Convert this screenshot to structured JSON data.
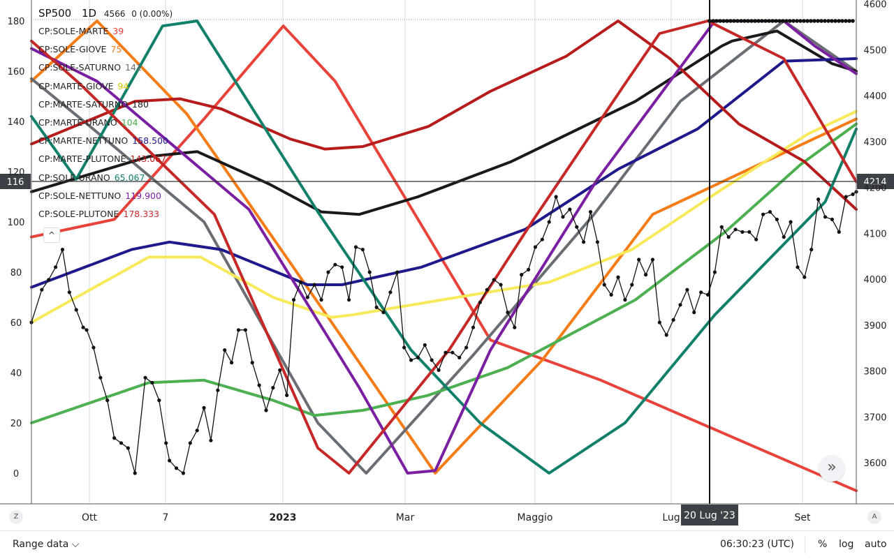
{
  "header": {
    "symbol": "SP500",
    "interval": "1D",
    "price": "4566",
    "change": "0 (0.00%)"
  },
  "legend": [
    {
      "name": "CP:SOLE-MARTE",
      "value": "39",
      "color": "#e8433a"
    },
    {
      "name": "CP:SOLE-GIOVE",
      "value": "75",
      "color": "#f57c17"
    },
    {
      "name": "CP:SOLE-SATURNO",
      "value": "141",
      "color": "#6a6d73"
    },
    {
      "name": "CP:MARTE-GIOVE",
      "value": "94",
      "color": "#f7e95a"
    },
    {
      "name": "CP:MARTE-SATURNO",
      "value": "180",
      "color": "#1a1a1a"
    },
    {
      "name": "CP:MARTE-URANO",
      "value": "104",
      "color": "#4caf50"
    },
    {
      "name": "CP:MARTE-NETTUNO",
      "value": "158.500",
      "color": "#1f1a8c"
    },
    {
      "name": "CP:MARTE-PLUTONE",
      "value": "143.067",
      "color": "#b71c1c"
    },
    {
      "name": "CP:SOLE-URANO",
      "value": "65.067",
      "color": "#11806a"
    },
    {
      "name": "CP:SOLE-NETTUNO",
      "value": "119.900",
      "color": "#7b1fa2"
    },
    {
      "name": "CP:SOLE-PLUTONE",
      "value": "178.333",
      "color": "#c62828"
    }
  ],
  "controls": {
    "collapse": "^",
    "scroll": "»",
    "left_corner": "Z",
    "right_corner": "A"
  },
  "bottom": {
    "range": "Range data ⌵",
    "time": "06:30:23 (UTC)",
    "percent": "%",
    "log": "log",
    "auto": "auto"
  },
  "chart_data": {
    "type": "line",
    "x_labels": [
      "Ott",
      "7",
      "2023",
      "Mar",
      "Maggio",
      "Lug",
      "Set"
    ],
    "left_axis": {
      "ticks": [
        0,
        20,
        40,
        60,
        80,
        100,
        120,
        140,
        160,
        180
      ],
      "range": [
        -10,
        186
      ]
    },
    "right_axis": {
      "ticks": [
        3600,
        3700,
        3800,
        3900,
        4000,
        4100,
        4200,
        4300,
        4400,
        4500,
        4600
      ],
      "range": [
        3520,
        4600
      ]
    },
    "crosshair": {
      "x_label": "20 Lug '23",
      "left_value": "116",
      "right_value": "4214"
    },
    "price_line": 4566,
    "series": [
      {
        "name": "CP:SOLE-MARTE",
        "color": "#e8433a",
        "points": [
          [
            0,
            94
          ],
          [
            24,
            101
          ],
          [
            50,
            141
          ],
          [
            73,
            178
          ],
          [
            88,
            156
          ],
          [
            133,
            53
          ],
          [
            165,
            37
          ],
          [
            239,
            -7
          ]
        ]
      },
      {
        "name": "CP:SOLE-GIOVE",
        "color": "#f57c17",
        "points": [
          [
            0,
            156
          ],
          [
            19,
            180
          ],
          [
            45,
            143
          ],
          [
            87,
            60
          ],
          [
            117,
            0
          ],
          [
            148,
            45
          ],
          [
            180,
            103
          ],
          [
            239,
            141
          ]
        ]
      },
      {
        "name": "CP:SOLE-SATURNO",
        "color": "#6a6d73",
        "points": [
          [
            0,
            157
          ],
          [
            17,
            138
          ],
          [
            50,
            100
          ],
          [
            83,
            20
          ],
          [
            97,
            0
          ],
          [
            128,
            47
          ],
          [
            163,
            103
          ],
          [
            188,
            148
          ],
          [
            218,
            180
          ],
          [
            239,
            160
          ]
        ]
      },
      {
        "name": "CP:MARTE-GIOVE",
        "color": "#f7e95a",
        "points": [
          [
            0,
            60
          ],
          [
            34,
            86
          ],
          [
            49,
            86
          ],
          [
            70,
            70
          ],
          [
            87,
            62
          ],
          [
            93,
            63
          ],
          [
            119,
            69
          ],
          [
            150,
            76
          ],
          [
            174,
            89
          ],
          [
            199,
            112
          ],
          [
            225,
            135
          ],
          [
            239,
            144
          ]
        ]
      },
      {
        "name": "CP:MARTE-SATURNO",
        "color": "#1a1a1a",
        "points": [
          [
            0,
            112
          ],
          [
            34,
            126
          ],
          [
            48,
            128
          ],
          [
            69,
            115
          ],
          [
            84,
            104
          ],
          [
            95,
            103
          ],
          [
            112,
            110
          ],
          [
            139,
            124
          ],
          [
            175,
            148
          ],
          [
            200,
            170
          ],
          [
            203,
            172
          ],
          [
            216,
            176
          ],
          [
            232,
            163
          ],
          [
            239,
            160
          ]
        ]
      },
      {
        "name": "CP:MARTE-URANO",
        "color": "#4caf50",
        "points": [
          [
            0,
            20
          ],
          [
            34,
            36
          ],
          [
            50,
            37
          ],
          [
            70,
            29
          ],
          [
            82,
            23
          ],
          [
            96,
            25
          ],
          [
            115,
            31
          ],
          [
            138,
            42
          ],
          [
            175,
            69
          ],
          [
            201,
            96
          ],
          [
            223,
            123
          ],
          [
            239,
            139
          ]
        ]
      },
      {
        "name": "CP:MARTE-NETTUNO",
        "color": "#1f1a8c",
        "points": [
          [
            0,
            74
          ],
          [
            29,
            89
          ],
          [
            40,
            92
          ],
          [
            55,
            89
          ],
          [
            80,
            75
          ],
          [
            90,
            75
          ],
          [
            113,
            82
          ],
          [
            143,
            97
          ],
          [
            170,
            121
          ],
          [
            193,
            137
          ],
          [
            218,
            164
          ],
          [
            239,
            165
          ]
        ]
      },
      {
        "name": "CP:MARTE-PLUTONE",
        "color": "#b71c1c",
        "points": [
          [
            0,
            131
          ],
          [
            30,
            148
          ],
          [
            43,
            149
          ],
          [
            55,
            145
          ],
          [
            75,
            133
          ],
          [
            85,
            129
          ],
          [
            96,
            130
          ],
          [
            115,
            138
          ],
          [
            133,
            152
          ],
          [
            155,
            166
          ],
          [
            170,
            180
          ],
          [
            185,
            165
          ],
          [
            205,
            139
          ],
          [
            224,
            124
          ],
          [
            239,
            105
          ]
        ]
      },
      {
        "name": "CP:SOLE-URANO",
        "color": "#11806a",
        "points": [
          [
            0,
            142
          ],
          [
            13,
            117
          ],
          [
            38,
            178
          ],
          [
            48,
            180
          ],
          [
            83,
            104
          ],
          [
            110,
            49
          ],
          [
            130,
            20
          ],
          [
            150,
            0
          ],
          [
            172,
            20
          ],
          [
            198,
            63
          ],
          [
            230,
            108
          ],
          [
            239,
            137
          ]
        ]
      },
      {
        "name": "CP:SOLE-NETTUNO",
        "color": "#7b1fa2",
        "points": [
          [
            0,
            169
          ],
          [
            19,
            156
          ],
          [
            63,
            105
          ],
          [
            95,
            34
          ],
          [
            109,
            0
          ],
          [
            117,
            1
          ],
          [
            133,
            49
          ],
          [
            164,
            117
          ],
          [
            198,
            180
          ],
          [
            218,
            180
          ],
          [
            227,
            170
          ],
          [
            239,
            159
          ]
        ]
      },
      {
        "name": "CP:SOLE-PLUTONE",
        "color": "#c62828",
        "points": [
          [
            0,
            172
          ],
          [
            14,
            155
          ],
          [
            53,
            103
          ],
          [
            83,
            10
          ],
          [
            92,
            0
          ],
          [
            121,
            49
          ],
          [
            146,
            102
          ],
          [
            172,
            155
          ],
          [
            182,
            175
          ],
          [
            196,
            180
          ],
          [
            218,
            165
          ],
          [
            239,
            116
          ]
        ]
      },
      {
        "name": "SP500",
        "color": "#111111",
        "points": [
          [
            0,
            60
          ],
          [
            3,
            73
          ],
          [
            5,
            77
          ],
          [
            7,
            82
          ],
          [
            9,
            89
          ],
          [
            11,
            72
          ],
          [
            13,
            65
          ],
          [
            15,
            58
          ],
          [
            16,
            57
          ],
          [
            18,
            50
          ],
          [
            20,
            38
          ],
          [
            22,
            29
          ],
          [
            24,
            14
          ],
          [
            26,
            12
          ],
          [
            28,
            10
          ],
          [
            30,
            0
          ],
          [
            33,
            38
          ],
          [
            35,
            36
          ],
          [
            37,
            29
          ],
          [
            39,
            12
          ],
          [
            40,
            5
          ],
          [
            42,
            2
          ],
          [
            44,
            0
          ],
          [
            46,
            12
          ],
          [
            48,
            17
          ],
          [
            50,
            26
          ],
          [
            52,
            13
          ],
          [
            54,
            33
          ],
          [
            56,
            49
          ],
          [
            58,
            44
          ],
          [
            60,
            57
          ],
          [
            62,
            57
          ],
          [
            64,
            44
          ],
          [
            66,
            35
          ],
          [
            68,
            25
          ],
          [
            70,
            34
          ],
          [
            72,
            41
          ],
          [
            74,
            31
          ],
          [
            76,
            69
          ],
          [
            78,
            76
          ],
          [
            80,
            70
          ],
          [
            82,
            75
          ],
          [
            84,
            69
          ],
          [
            86,
            80
          ],
          [
            88,
            83
          ],
          [
            90,
            82
          ],
          [
            92,
            69
          ],
          [
            94,
            90
          ],
          [
            96,
            89
          ],
          [
            98,
            80
          ],
          [
            100,
            66
          ],
          [
            102,
            64
          ],
          [
            104,
            72
          ],
          [
            106,
            80
          ],
          [
            108,
            50
          ],
          [
            110,
            45
          ],
          [
            112,
            46
          ],
          [
            114,
            51
          ],
          [
            116,
            45
          ],
          [
            118,
            41
          ],
          [
            120,
            48
          ],
          [
            122,
            48
          ],
          [
            124,
            46
          ],
          [
            126,
            50
          ],
          [
            128,
            58
          ],
          [
            130,
            68
          ],
          [
            132,
            73
          ],
          [
            134,
            77
          ],
          [
            136,
            75
          ],
          [
            138,
            64
          ],
          [
            140,
            58
          ],
          [
            142,
            79
          ],
          [
            144,
            81
          ],
          [
            146,
            90
          ],
          [
            148,
            93
          ],
          [
            150,
            100
          ],
          [
            152,
            110
          ],
          [
            154,
            102
          ],
          [
            156,
            105
          ],
          [
            158,
            98
          ],
          [
            160,
            92
          ],
          [
            162,
            104
          ],
          [
            164,
            92
          ],
          [
            166,
            75
          ],
          [
            168,
            71
          ],
          [
            170,
            78
          ],
          [
            172,
            69
          ],
          [
            174,
            75
          ],
          [
            176,
            85
          ],
          [
            178,
            79
          ],
          [
            180,
            85
          ],
          [
            182,
            60
          ],
          [
            184,
            55
          ],
          [
            186,
            61
          ],
          [
            188,
            67
          ],
          [
            190,
            73
          ],
          [
            192,
            64
          ],
          [
            194,
            72
          ],
          [
            196,
            71
          ],
          [
            198,
            80
          ],
          [
            200,
            98
          ],
          [
            202,
            94
          ],
          [
            204,
            97
          ],
          [
            206,
            96
          ],
          [
            208,
            96
          ],
          [
            210,
            93
          ],
          [
            212,
            103
          ],
          [
            214,
            104
          ],
          [
            216,
            101
          ],
          [
            218,
            94
          ],
          [
            220,
            100
          ],
          [
            222,
            82
          ],
          [
            224,
            78
          ],
          [
            226,
            89
          ],
          [
            228,
            109
          ],
          [
            230,
            102
          ],
          [
            232,
            101
          ],
          [
            234,
            96
          ],
          [
            236,
            110
          ],
          [
            238,
            111
          ],
          [
            239,
            112
          ]
        ]
      }
    ]
  }
}
